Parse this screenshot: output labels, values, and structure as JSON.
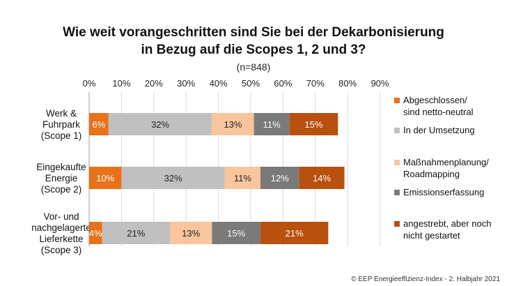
{
  "chart_data": {
    "type": "bar",
    "stacked": true,
    "orientation": "horizontal",
    "title_lines": [
      "Wie weit vorangeschritten sind Sie bei der Dekarbonisierung",
      "in Bezug auf die Scopes 1, 2 und 3?"
    ],
    "subtitle": "(n=848)",
    "categories": [
      [
        "Werk &",
        "Fuhrpark",
        "(Scope 1)"
      ],
      [
        "Eingekaufte",
        "Energie",
        "(Scope 2)"
      ],
      [
        "Vor- und",
        "nachgelagerte",
        "Lieferkette",
        "(Scope 3)"
      ]
    ],
    "x_ticks": [
      "0%",
      "10%",
      "20%",
      "30%",
      "40%",
      "50%",
      "60%",
      "70%",
      "80%",
      "90%"
    ],
    "xlim": [
      0,
      90
    ],
    "grid": true,
    "legend_position": "right",
    "series": [
      {
        "name": "Abgeschlossen/ sind netto-neutral",
        "legend_lines": [
          "Abgeschlossen/",
          "sind netto-neutral"
        ],
        "color": "#E8711A",
        "label_color": "#ffffff",
        "values": [
          6,
          10,
          4
        ],
        "labels": [
          "6%",
          "10%",
          "4%"
        ]
      },
      {
        "name": "In der Umsetzung",
        "legend_lines": [
          "In der Umsetzung"
        ],
        "color": "#C0C0C0",
        "label_color": "#222222",
        "values": [
          32,
          32,
          21
        ],
        "labels": [
          "32%",
          "32%",
          "21%"
        ]
      },
      {
        "name": "Maßnahmenplanung/ Roadmapping",
        "legend_lines": [
          "Maßnahmenplanung/",
          "Roadmapping"
        ],
        "color": "#F9C59C",
        "label_color": "#222222",
        "values": [
          13,
          11,
          13
        ],
        "labels": [
          "13%",
          "11%",
          "13%"
        ]
      },
      {
        "name": "Emissionserfassung",
        "legend_lines": [
          "Emissionserfassung"
        ],
        "color": "#7A7A7A",
        "label_color": "#ffffff",
        "values": [
          11,
          12,
          15
        ],
        "labels": [
          "11%",
          "12%",
          "15%"
        ]
      },
      {
        "name": "angestrebt, aber noch nicht gestartet",
        "legend_lines": [
          "angestrebt, aber noch",
          "nicht gestartet"
        ],
        "color": "#B8500E",
        "label_color": "#ffffff",
        "values": [
          15,
          14,
          21
        ],
        "labels": [
          "15%",
          "14%",
          "21%"
        ]
      }
    ]
  },
  "credit": "© EEP Energieeffizienz-Index - 2. Halbjahr 2021"
}
